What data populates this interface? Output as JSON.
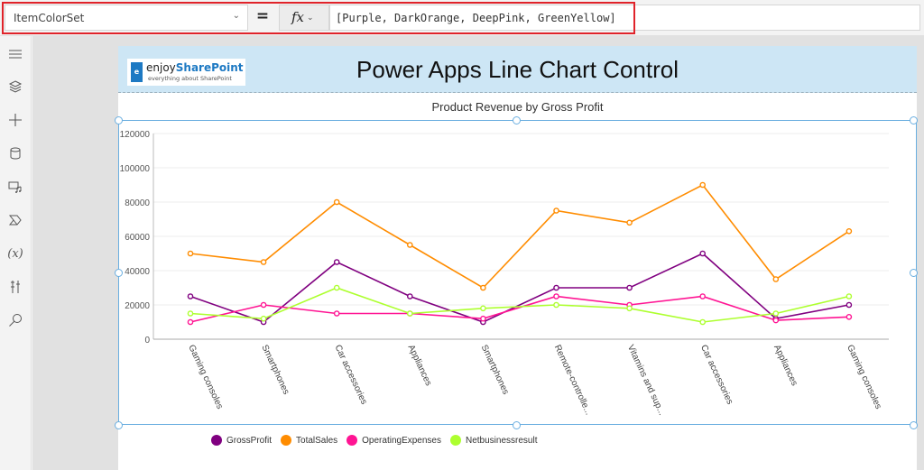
{
  "formula_bar": {
    "property": "ItemColorSet",
    "equals": "=",
    "fx_label": "fx",
    "formula": "[Purple, DarkOrange, DeepPink, GreenYellow]"
  },
  "left_rail": {
    "items": [
      "hamburger-menu",
      "layers",
      "insert",
      "data",
      "media",
      "power-automate",
      "variables",
      "advanced-tools",
      "search"
    ]
  },
  "screen": {
    "header_title": "Power Apps Line Chart Control",
    "logo_text_main": "enjoy",
    "logo_text_brand": "SharePoint",
    "logo_tagline": "everything about SharePoint",
    "header_bg": "#cde6f5"
  },
  "chart_data": {
    "type": "line",
    "title": "Product Revenue by Gross Profit",
    "xlabel": "",
    "ylabel": "",
    "ylim": [
      0,
      120000
    ],
    "yticks": [
      0,
      20000,
      40000,
      60000,
      80000,
      100000,
      120000
    ],
    "ytick_labels": [
      "0",
      "20000",
      "40000",
      "60000",
      "80000",
      "100000",
      "120000"
    ],
    "grid": true,
    "legend_position": "bottom",
    "categories": [
      "Gaming consoles",
      "Smartphones",
      "Car accessories",
      "Appliances",
      "Smartphones",
      "Remote-controlle...",
      "Vitamins and sup...",
      "Car accessories",
      "Appliances",
      "Gaming consoles"
    ],
    "series": [
      {
        "name": "GrossProfit",
        "color": "#800080",
        "values": [
          25000,
          10000,
          45000,
          25000,
          10000,
          30000,
          30000,
          50000,
          12000,
          20000
        ]
      },
      {
        "name": "TotalSales",
        "color": "#ff8c00",
        "values": [
          50000,
          45000,
          80000,
          55000,
          30000,
          75000,
          68000,
          90000,
          35000,
          63000
        ]
      },
      {
        "name": "OperatingExpenses",
        "color": "#ff1493",
        "values": [
          10000,
          20000,
          15000,
          15000,
          12000,
          25000,
          20000,
          25000,
          11000,
          13000
        ]
      },
      {
        "name": "Netbusinessresult",
        "color": "#adff2f",
        "values": [
          15000,
          12000,
          30000,
          15000,
          18000,
          20000,
          18000,
          10000,
          15000,
          25000
        ]
      }
    ]
  },
  "colors": {
    "selection": "#6aaee0",
    "highlight_border": "#e0232a"
  }
}
